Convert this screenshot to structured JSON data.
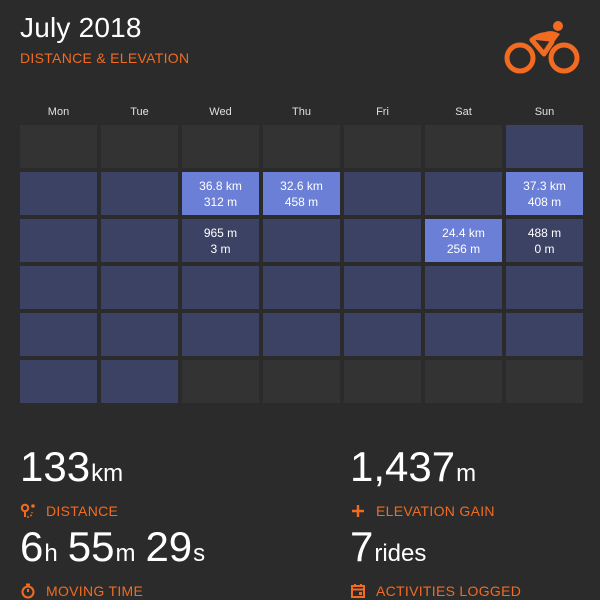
{
  "header": {
    "title": "July 2018",
    "subtitle": "DISTANCE & ELEVATION",
    "logo_icon": "cyclist-icon",
    "accent_color": "#f26b21"
  },
  "weekdays": [
    "Mon",
    "Tue",
    "Wed",
    "Thu",
    "Fri",
    "Sat",
    "Sun"
  ],
  "calendar": {
    "colors": {
      "outside_month": "#333333",
      "month_day": "#3b4263",
      "ride_day": "#6b7fd6"
    },
    "cells": [
      {
        "state": "outside",
        "line1": "",
        "line2": ""
      },
      {
        "state": "outside",
        "line1": "",
        "line2": ""
      },
      {
        "state": "outside",
        "line1": "",
        "line2": ""
      },
      {
        "state": "outside",
        "line1": "",
        "line2": ""
      },
      {
        "state": "outside",
        "line1": "",
        "line2": ""
      },
      {
        "state": "outside",
        "line1": "",
        "line2": ""
      },
      {
        "state": "month",
        "line1": "",
        "line2": ""
      },
      {
        "state": "month",
        "line1": "",
        "line2": ""
      },
      {
        "state": "month",
        "line1": "",
        "line2": ""
      },
      {
        "state": "ride",
        "line1": "36.8 km",
        "line2": "312 m"
      },
      {
        "state": "ride",
        "line1": "32.6 km",
        "line2": "458 m"
      },
      {
        "state": "month",
        "line1": "",
        "line2": ""
      },
      {
        "state": "month",
        "line1": "",
        "line2": ""
      },
      {
        "state": "ride",
        "line1": "37.3 km",
        "line2": "408 m"
      },
      {
        "state": "month",
        "line1": "",
        "line2": ""
      },
      {
        "state": "month",
        "line1": "",
        "line2": ""
      },
      {
        "state": "month",
        "line1": "965 m",
        "line2": "3 m"
      },
      {
        "state": "month",
        "line1": "",
        "line2": ""
      },
      {
        "state": "month",
        "line1": "",
        "line2": ""
      },
      {
        "state": "ride",
        "line1": "24.4 km",
        "line2": "256 m"
      },
      {
        "state": "month",
        "line1": "488 m",
        "line2": "0 m"
      },
      {
        "state": "month",
        "line1": "",
        "line2": ""
      },
      {
        "state": "month",
        "line1": "",
        "line2": ""
      },
      {
        "state": "month",
        "line1": "",
        "line2": ""
      },
      {
        "state": "month",
        "line1": "",
        "line2": ""
      },
      {
        "state": "month",
        "line1": "",
        "line2": ""
      },
      {
        "state": "month",
        "line1": "",
        "line2": ""
      },
      {
        "state": "month",
        "line1": "",
        "line2": ""
      },
      {
        "state": "month",
        "line1": "",
        "line2": ""
      },
      {
        "state": "month",
        "line1": "",
        "line2": ""
      },
      {
        "state": "month",
        "line1": "",
        "line2": ""
      },
      {
        "state": "month",
        "line1": "",
        "line2": ""
      },
      {
        "state": "month",
        "line1": "",
        "line2": ""
      },
      {
        "state": "month",
        "line1": "",
        "line2": ""
      },
      {
        "state": "month",
        "line1": "",
        "line2": ""
      },
      {
        "state": "month",
        "line1": "",
        "line2": ""
      },
      {
        "state": "month",
        "line1": "",
        "line2": ""
      },
      {
        "state": "outside",
        "line1": "",
        "line2": ""
      },
      {
        "state": "outside",
        "line1": "",
        "line2": ""
      },
      {
        "state": "outside",
        "line1": "",
        "line2": ""
      },
      {
        "state": "outside",
        "line1": "",
        "line2": ""
      },
      {
        "state": "outside",
        "line1": "",
        "line2": ""
      }
    ]
  },
  "stats": {
    "distance": {
      "value": "133",
      "unit": "km",
      "label": "DISTANCE",
      "icon": "route-pin-icon"
    },
    "elevation": {
      "value": "1,437",
      "unit": "m",
      "label": "ELEVATION GAIN",
      "icon": "plus-icon"
    },
    "moving_time": {
      "hours": "6",
      "hours_unit": "h",
      "minutes": "55",
      "minutes_unit": "m",
      "seconds": "29",
      "seconds_unit": "s",
      "label": "MOVING TIME",
      "icon": "stopwatch-icon"
    },
    "activities": {
      "value": "7",
      "unit": "rides",
      "label": "ACTIVITIES LOGGED",
      "icon": "calendar-icon"
    }
  }
}
